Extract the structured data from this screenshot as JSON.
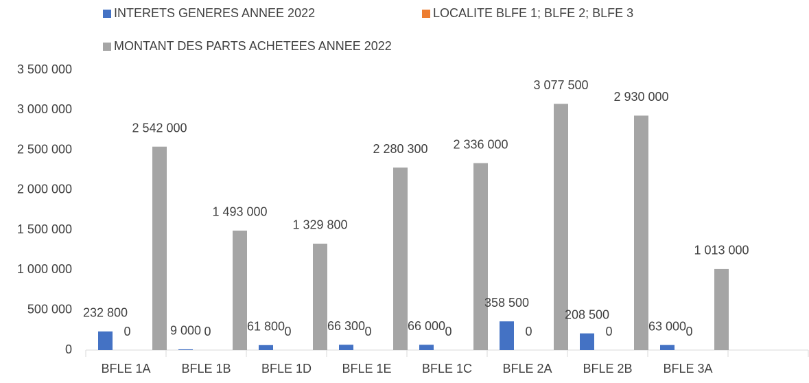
{
  "chart_data": {
    "type": "bar",
    "categories": [
      "BFLE 1A",
      "BFLE 1B",
      "BFLE 1D",
      "BFLE 1E",
      "BFLE 1C",
      "BFLE 2A",
      "BFLE 2B",
      "BFLE 3A",
      null
    ],
    "series": [
      {
        "name": "INTERETS GENERES ANNEE 2022",
        "color": "#4472c4",
        "values": [
          232800,
          9000,
          61800,
          66300,
          66000,
          358500,
          208500,
          63000,
          null
        ],
        "value_labels": [
          "232 800",
          "9 000",
          "61 800",
          "66 300",
          "66 000",
          "358 500",
          "208 500",
          "63 000",
          null
        ]
      },
      {
        "name": "LOCALITE BLFE 1; BLFE 2; BLFE 3",
        "color": "#ed7d31",
        "values": [
          0,
          0,
          0,
          0,
          0,
          0,
          0,
          0,
          null
        ]
      },
      {
        "name": "MONTANT DES PARTS ACHETEES ANNEE 2022",
        "color": "#a5a5a5",
        "values": [
          2542000,
          1493000,
          1329800,
          2280300,
          2336000,
          3077500,
          2930000,
          1013000,
          null
        ],
        "value_labels": [
          "2 542 000",
          "1 493 000",
          "1 329 800",
          "2 280 300",
          "2 336 000",
          "3 077 500",
          "2 930 000",
          "1 013 000",
          null
        ]
      }
    ],
    "ylim": [
      0,
      3500000
    ],
    "yticks": [
      0,
      {
        "value": 500000,
        "label": "500 000"
      },
      {
        "value": 1000000,
        "label": "1 000 000"
      },
      {
        "value": 1500000,
        "label": "1 500 000"
      },
      {
        "value": 2000000,
        "label": "2 000 000"
      },
      {
        "value": 2500000,
        "label": "2 500 000"
      },
      {
        "value": 3000000,
        "label": "3 000 000"
      },
      {
        "value": 3500000,
        "label": "3 500 000"
      }
    ],
    "grid": false,
    "legend": "top"
  }
}
